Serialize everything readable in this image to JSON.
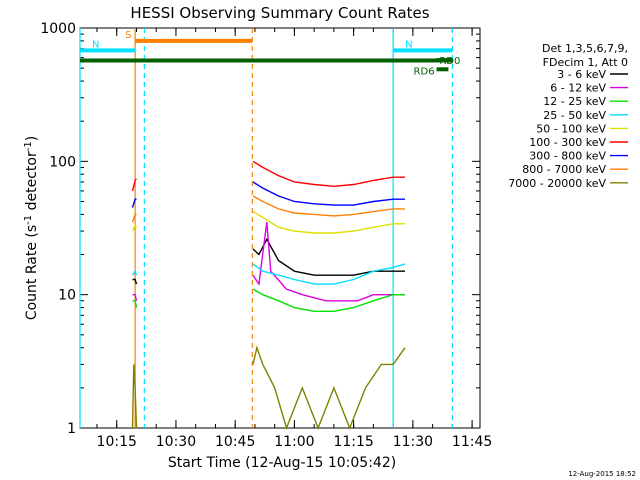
{
  "chart_data": {
    "type": "line",
    "title": "HESSI Observing Summary Count Rates",
    "xlabel": "Start Time (12-Aug-15 10:05:42)",
    "ylabel": "Count Rate (s",
    "ylabel_sup": "-1",
    "ylabel_mid": " detector",
    "ylabel_end": ")",
    "yscale": "log",
    "ylim": [
      1,
      1000
    ],
    "xlim": [
      "10:05:42",
      "11:47:00"
    ],
    "x_ticks": [
      "10:15",
      "10:30",
      "10:45",
      "11:00",
      "11:15",
      "11:30",
      "11:45"
    ],
    "y_ticks": [
      "1",
      "10",
      "100",
      "1000"
    ],
    "footer_date": "12-Aug-2015 18:52",
    "legend_header": [
      "Det 1,3,5,6,7,9,",
      "FDecim 1, Att 0"
    ],
    "legend_position": "right",
    "series": [
      {
        "name": "3 - 6 keV",
        "color": "#000000",
        "points": [
          [
            "10:19:00",
            13
          ],
          [
            "10:19:40",
            13
          ],
          [
            "10:20:00",
            12
          ],
          [
            "10:49:30",
            22
          ],
          [
            "10:51:00",
            20
          ],
          [
            "10:53:00",
            26
          ],
          [
            "10:56:00",
            18
          ],
          [
            "11:00:00",
            15
          ],
          [
            "11:05:00",
            14
          ],
          [
            "11:10:00",
            14
          ],
          [
            "11:15:00",
            14
          ],
          [
            "11:20:00",
            15
          ],
          [
            "11:25:00",
            15
          ],
          [
            "11:28:00",
            15
          ]
        ]
      },
      {
        "name": "6 - 12 keV",
        "color": "#e000e0",
        "points": [
          [
            "10:19:00",
            10
          ],
          [
            "10:19:40",
            10
          ],
          [
            "10:20:00",
            9
          ],
          [
            "10:49:30",
            14
          ],
          [
            "10:51:00",
            12
          ],
          [
            "10:53:00",
            35
          ],
          [
            "10:54:00",
            15
          ],
          [
            "10:58:00",
            11
          ],
          [
            "11:02:00",
            10
          ],
          [
            "11:08:00",
            9
          ],
          [
            "11:12:00",
            9
          ],
          [
            "11:16:00",
            9
          ],
          [
            "11:20:00",
            10
          ],
          [
            "11:25:00",
            10
          ],
          [
            "11:28:00",
            10
          ]
        ]
      },
      {
        "name": "12 - 25 keV",
        "color": "#00e000",
        "points": [
          [
            "10:19:00",
            9
          ],
          [
            "10:19:40",
            9
          ],
          [
            "10:20:00",
            8
          ],
          [
            "10:49:30",
            11
          ],
          [
            "10:52:00",
            10
          ],
          [
            "10:56:00",
            9
          ],
          [
            "11:00:00",
            8
          ],
          [
            "11:05:00",
            7.5
          ],
          [
            "11:10:00",
            7.5
          ],
          [
            "11:15:00",
            8
          ],
          [
            "11:20:00",
            9
          ],
          [
            "11:25:00",
            10
          ],
          [
            "11:28:00",
            10
          ]
        ]
      },
      {
        "name": "25 - 50 keV",
        "color": "#00e0ff",
        "points": [
          [
            "10:19:00",
            14
          ],
          [
            "10:19:40",
            15
          ],
          [
            "10:20:00",
            14
          ],
          [
            "10:49:30",
            17
          ],
          [
            "10:52:00",
            15
          ],
          [
            "10:56:00",
            14
          ],
          [
            "11:00:00",
            13
          ],
          [
            "11:05:00",
            12
          ],
          [
            "11:10:00",
            12
          ],
          [
            "11:15:00",
            13
          ],
          [
            "11:20:00",
            15
          ],
          [
            "11:25:00",
            16
          ],
          [
            "11:28:00",
            17
          ]
        ]
      },
      {
        "name": "50 - 100 keV",
        "color": "#e0e000",
        "points": [
          [
            "10:19:00",
            30
          ],
          [
            "10:19:40",
            33
          ],
          [
            "10:20:00",
            32
          ],
          [
            "10:49:30",
            42
          ],
          [
            "10:52:00",
            38
          ],
          [
            "10:56:00",
            32
          ],
          [
            "11:00:00",
            30
          ],
          [
            "11:05:00",
            29
          ],
          [
            "11:10:00",
            29
          ],
          [
            "11:15:00",
            30
          ],
          [
            "11:20:00",
            32
          ],
          [
            "11:25:00",
            34
          ],
          [
            "11:28:00",
            34
          ]
        ]
      },
      {
        "name": "100 - 300 keV",
        "color": "#ff0000",
        "points": [
          [
            "10:19:00",
            60
          ],
          [
            "10:19:40",
            72
          ],
          [
            "10:20:00",
            74
          ],
          [
            "10:49:30",
            100
          ],
          [
            "10:52:00",
            90
          ],
          [
            "10:56:00",
            78
          ],
          [
            "11:00:00",
            70
          ],
          [
            "11:05:00",
            67
          ],
          [
            "11:10:00",
            65
          ],
          [
            "11:15:00",
            67
          ],
          [
            "11:20:00",
            72
          ],
          [
            "11:25:00",
            76
          ],
          [
            "11:28:00",
            76
          ]
        ]
      },
      {
        "name": "300 - 800 keV",
        "color": "#0000ff",
        "points": [
          [
            "10:19:00",
            45
          ],
          [
            "10:19:40",
            52
          ],
          [
            "10:20:00",
            52
          ],
          [
            "10:49:30",
            70
          ],
          [
            "10:52:00",
            63
          ],
          [
            "10:56:00",
            55
          ],
          [
            "11:00:00",
            50
          ],
          [
            "11:05:00",
            48
          ],
          [
            "11:10:00",
            47
          ],
          [
            "11:15:00",
            47
          ],
          [
            "11:20:00",
            50
          ],
          [
            "11:25:00",
            52
          ],
          [
            "11:28:00",
            52
          ]
        ]
      },
      {
        "name": "800 - 7000 keV",
        "color": "#ff8000",
        "points": [
          [
            "10:19:00",
            35
          ],
          [
            "10:19:40",
            40
          ],
          [
            "10:20:00",
            40
          ],
          [
            "10:49:30",
            55
          ],
          [
            "10:52:00",
            50
          ],
          [
            "10:56:00",
            44
          ],
          [
            "11:00:00",
            41
          ],
          [
            "11:05:00",
            40
          ],
          [
            "11:10:00",
            39
          ],
          [
            "11:15:00",
            40
          ],
          [
            "11:20:00",
            42
          ],
          [
            "11:25:00",
            44
          ],
          [
            "11:28:00",
            44
          ]
        ]
      },
      {
        "name": "7000 - 20000 keV",
        "color": "#808000",
        "points": [
          [
            "10:19:00",
            1
          ],
          [
            "10:19:20",
            3
          ],
          [
            "10:19:40",
            2
          ],
          [
            "10:20:00",
            1
          ],
          [
            "10:49:30",
            3
          ],
          [
            "10:50:30",
            4
          ],
          [
            "10:52:00",
            3
          ],
          [
            "10:55:00",
            2
          ],
          [
            "10:58:00",
            1
          ],
          [
            "11:02:00",
            2
          ],
          [
            "11:06:00",
            1
          ],
          [
            "11:10:00",
            2
          ],
          [
            "11:14:00",
            1
          ],
          [
            "11:18:00",
            2
          ],
          [
            "11:22:00",
            3
          ],
          [
            "11:25:00",
            3
          ],
          [
            "11:28:00",
            4
          ]
        ]
      }
    ],
    "flag_bars": [
      {
        "label": "S",
        "color": "#ff8000",
        "start": "10:19:40",
        "end": "10:49:20",
        "level": 800
      },
      {
        "label": "N",
        "color": "#00e0ff",
        "start": "10:05:42",
        "end": "10:19:40",
        "level": 680
      },
      {
        "label": "N",
        "color": "#00e0ff",
        "start": "11:25:00",
        "end": "11:40:00",
        "level": 680
      },
      {
        "label": "",
        "color": "#006000",
        "start": "10:05:42",
        "end": "11:40:00",
        "level": 570
      },
      {
        "label": "RD0",
        "color": "#006000",
        "start": "11:36:00",
        "end": "11:40:00",
        "level": 575
      },
      {
        "label": "RD6",
        "color": "#006000",
        "start": "11:36:00",
        "end": "11:39:00",
        "level": 490
      }
    ],
    "vlines": [
      {
        "time": "10:05:42",
        "color": "#00e0ff",
        "style": "solid"
      },
      {
        "time": "10:19:40",
        "color": "#ff8000",
        "style": "solid"
      },
      {
        "time": "10:22:00",
        "color": "#00e0ff",
        "style": "dashed"
      },
      {
        "time": "10:49:20",
        "color": "#ff8000",
        "style": "dashed"
      },
      {
        "time": "11:25:00",
        "color": "#00e0ff",
        "style": "solid"
      },
      {
        "time": "11:40:00",
        "color": "#00e0ff",
        "style": "dashed"
      }
    ]
  }
}
